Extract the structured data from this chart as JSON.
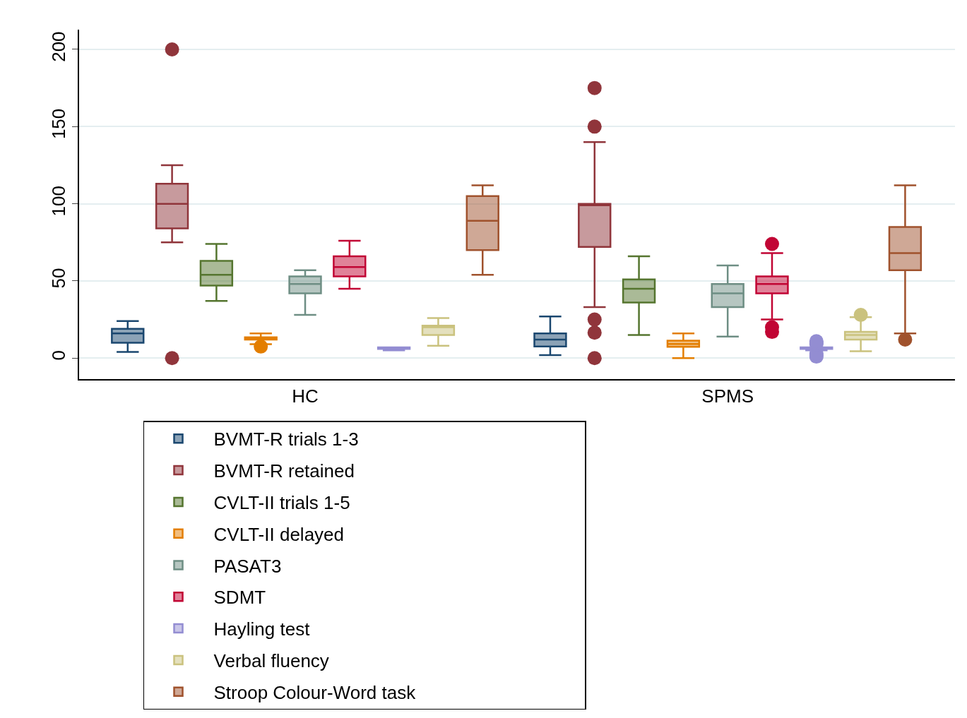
{
  "chart_data": {
    "type": "box",
    "categories": [
      "HC",
      "SPMS"
    ],
    "ylim": [
      -13.6,
      212.8
    ],
    "yticks": [
      0,
      50,
      100,
      150,
      200
    ],
    "grid": "y",
    "legend": "bottom",
    "marker": "circle",
    "series": [
      {
        "name": "BVMT-R trials 1-3",
        "color": "#1a476f",
        "boxes": [
          {
            "low": 4,
            "q1": 10,
            "median": 16,
            "q3": 19,
            "high": 24
          },
          {
            "low": 2,
            "q1": 7.5,
            "median": 12,
            "q3": 16,
            "high": 27
          }
        ]
      },
      {
        "name": "BVMT-R retained",
        "color": "#90353b",
        "boxes": [
          {
            "low": 75,
            "q1": 84,
            "median": 100,
            "q3": 113,
            "high": 125,
            "outliers": [
              0,
              200
            ]
          },
          {
            "low": 33,
            "q1": 72,
            "median": 99,
            "q3": 100,
            "high": 140,
            "outliers": [
              0,
              16.5,
              25,
              150,
              175
            ]
          }
        ]
      },
      {
        "name": "CVLT-II trials 1-5",
        "color": "#55752f",
        "boxes": [
          {
            "low": 37,
            "q1": 47,
            "median": 54,
            "q3": 63,
            "high": 74
          },
          {
            "low": 15,
            "q1": 36,
            "median": 45,
            "q3": 51,
            "high": 66
          }
        ]
      },
      {
        "name": "CVLT-II delayed",
        "color": "#e37e00",
        "boxes": [
          {
            "low": 9,
            "q1": 12,
            "median": 13,
            "q3": 13.5,
            "high": 16,
            "outliers": [
              7.5
            ]
          },
          {
            "low": 0,
            "q1": 7.3,
            "median": 9.2,
            "q3": 11.3,
            "high": 16
          }
        ]
      },
      {
        "name": "PASAT3",
        "color": "#6e8e84",
        "boxes": [
          {
            "low": 28,
            "q1": 42,
            "median": 48,
            "q3": 53,
            "high": 57
          },
          {
            "low": 14,
            "q1": 33,
            "median": 42,
            "q3": 48,
            "high": 60
          }
        ]
      },
      {
        "name": "SDMT",
        "color": "#c10534",
        "boxes": [
          {
            "low": 45,
            "q1": 53,
            "median": 59,
            "q3": 66,
            "high": 76
          },
          {
            "low": 25,
            "q1": 42,
            "median": 48,
            "q3": 53,
            "high": 68,
            "outliers": [
              17,
              20,
              74
            ]
          }
        ]
      },
      {
        "name": "Hayling test",
        "color": "#938dd2",
        "boxes": [
          {
            "low": 5,
            "q1": 6,
            "median": 6,
            "q3": 7,
            "high": 7
          },
          {
            "low": 5,
            "q1": 6,
            "median": 6,
            "q3": 7,
            "high": 7,
            "outliers": [
              1,
              2,
              3,
              9,
              10,
              11
            ]
          }
        ]
      },
      {
        "name": "Verbal fluency",
        "color": "#cac27e",
        "boxes": [
          {
            "low": 8,
            "q1": 15,
            "median": 20,
            "q3": 21,
            "high": 26
          },
          {
            "low": 4.5,
            "q1": 12,
            "median": 15,
            "q3": 17,
            "high": 26.5,
            "outliers": [
              28
            ]
          }
        ]
      },
      {
        "name": "Stroop Colour-Word task",
        "color": "#a0522d",
        "boxes": [
          {
            "low": 54,
            "q1": 70,
            "median": 89,
            "q3": 105,
            "high": 112
          },
          {
            "low": 16,
            "q1": 57,
            "median": 68,
            "q3": 85,
            "high": 112,
            "outliers": [
              12
            ]
          }
        ]
      }
    ]
  }
}
